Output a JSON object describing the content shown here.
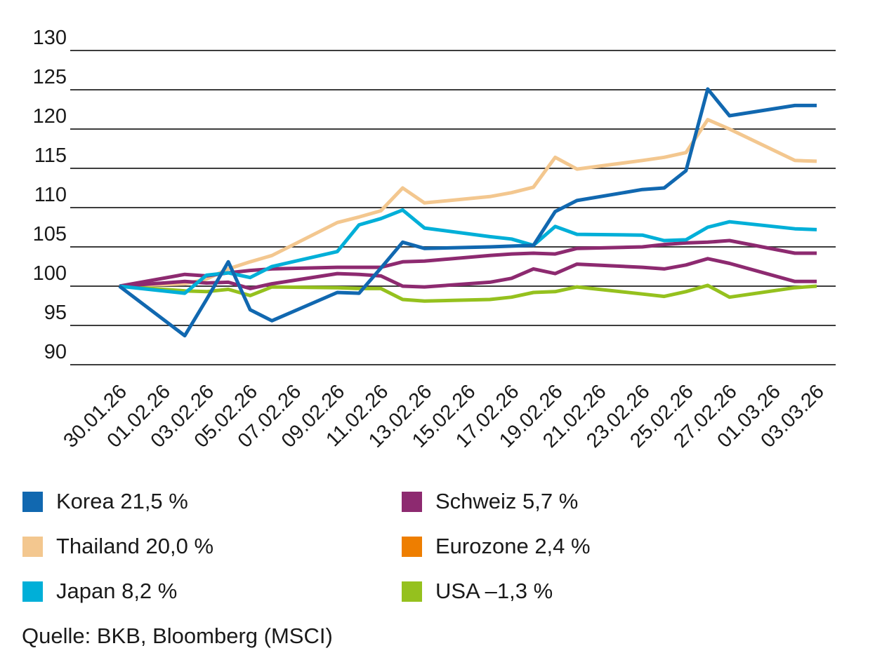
{
  "chart_data": {
    "type": "line",
    "title": "",
    "xlabel": "",
    "ylabel": "",
    "grid": "horizontal",
    "legend_position": "bottom-two-columns",
    "y_axis": {
      "min": 90,
      "max": 130,
      "step": 5,
      "ticks": [
        130,
        125,
        120,
        115,
        110,
        105,
        100,
        95,
        90
      ]
    },
    "x_ticks": [
      "30.01.26",
      "01.02.26",
      "03.02.26",
      "05.02.26",
      "07.02.26",
      "09.02.26",
      "11.02.26",
      "13.02.26",
      "15.02.26",
      "17.02.26",
      "19.02.26",
      "21.02.26",
      "23.02.26",
      "25.02.26",
      "27.02.26",
      "01.03.26",
      "03.03.26"
    ],
    "x_tick_day_offsets": [
      0,
      2,
      4,
      6,
      8,
      10,
      12,
      14,
      16,
      18,
      20,
      22,
      24,
      26,
      28,
      30,
      32
    ],
    "point_dates": [
      "30.01.26",
      "02.02.26",
      "03.02.26",
      "04.02.26",
      "05.02.26",
      "06.02.26",
      "09.02.26",
      "10.02.26",
      "11.02.26",
      "12.02.26",
      "13.02.26",
      "16.02.26",
      "17.02.26",
      "18.02.26",
      "19.02.26",
      "20.02.26",
      "23.02.26",
      "24.02.26",
      "25.02.26",
      "26.02.26",
      "27.02.26",
      "02.03.26",
      "03.03.26"
    ],
    "point_day_offsets": [
      0,
      3,
      4,
      5,
      6,
      7,
      10,
      11,
      12,
      13,
      14,
      17,
      18,
      19,
      20,
      21,
      24,
      25,
      26,
      27,
      28,
      31,
      32
    ],
    "series": [
      {
        "name": "Korea",
        "legend_label": "Korea 21,5 %",
        "color": "#1168B0",
        "values": [
          100,
          93.7,
          98.3,
          103.1,
          97.0,
          95.6,
          99.2,
          99.1,
          102.3,
          105.6,
          104.8,
          105.0,
          105.1,
          105.2,
          109.5,
          110.9,
          112.3,
          112.5,
          114.7,
          125.1,
          121.7,
          123.0,
          123.0
        ]
      },
      {
        "name": "Thailand",
        "legend_label": "Thailand 20,0 %",
        "color": "#F3C78F",
        "values": [
          100,
          100.3,
          100.9,
          102.2,
          103.1,
          103.9,
          108.1,
          108.8,
          109.6,
          112.5,
          110.6,
          111.4,
          111.9,
          112.6,
          116.4,
          114.9,
          116.0,
          116.4,
          117.0,
          121.2,
          120.0,
          116.0,
          115.9
        ]
      },
      {
        "name": "Japan",
        "legend_label": "Japan 8,2 %",
        "color": "#00AFD8",
        "values": [
          100,
          99.1,
          101.4,
          101.7,
          101.1,
          102.5,
          104.4,
          107.8,
          108.6,
          109.7,
          107.4,
          106.3,
          106.0,
          105.2,
          107.6,
          106.6,
          106.5,
          105.8,
          105.9,
          107.5,
          108.2,
          107.3,
          107.2
        ]
      },
      {
        "name": "Schweiz",
        "legend_label": "Schweiz 5,7 %",
        "color": "#8D2A70",
        "values": [
          100,
          101.5,
          101.3,
          101.7,
          102.0,
          102.2,
          102.4,
          102.4,
          102.4,
          103.1,
          103.2,
          103.9,
          104.1,
          104.2,
          104.1,
          104.8,
          105.0,
          105.3,
          105.5,
          105.6,
          105.8,
          104.2,
          104.2
        ]
      },
      {
        "name": "Eurozone",
        "legend_label": "Eurozone 2,4 %",
        "color": "#EE7E00",
        "line_color": "#8D2A70",
        "values": [
          100,
          100.6,
          100.4,
          100.5,
          99.7,
          100.3,
          101.6,
          101.5,
          101.3,
          100.0,
          99.9,
          100.5,
          101.0,
          102.2,
          101.6,
          102.8,
          102.4,
          102.2,
          102.7,
          103.5,
          102.9,
          100.6,
          100.6
        ]
      },
      {
        "name": "USA",
        "legend_label": "USA –1,3 %",
        "color": "#95C11E",
        "values": [
          100,
          99.4,
          99.3,
          99.6,
          98.8,
          99.9,
          99.8,
          99.7,
          99.7,
          98.3,
          98.1,
          98.3,
          98.6,
          99.2,
          99.3,
          99.9,
          99.0,
          98.7,
          99.3,
          100.1,
          98.6,
          99.8,
          100.0
        ]
      }
    ],
    "style": {
      "gridline_color": "#3D3D3D",
      "tick_text_color": "#1a1a1a",
      "line_width": 5
    }
  },
  "source": {
    "text": "Quelle: BKB, Bloomberg (MSCI)"
  }
}
